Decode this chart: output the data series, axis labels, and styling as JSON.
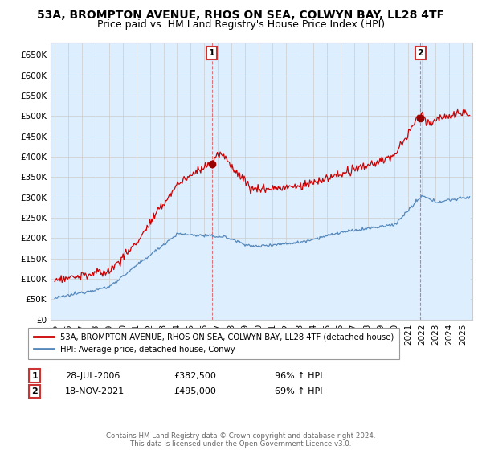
{
  "title": "53A, BROMPTON AVENUE, RHOS ON SEA, COLWYN BAY, LL28 4TF",
  "subtitle": "Price paid vs. HM Land Registry's House Price Index (HPI)",
  "ylim": [
    0,
    680000
  ],
  "yticks": [
    0,
    50000,
    100000,
    150000,
    200000,
    250000,
    300000,
    350000,
    400000,
    450000,
    500000,
    550000,
    600000,
    650000
  ],
  "ytick_labels": [
    "£0",
    "£50K",
    "£100K",
    "£150K",
    "£200K",
    "£250K",
    "£300K",
    "£350K",
    "£400K",
    "£450K",
    "£500K",
    "£550K",
    "£600K",
    "£650K"
  ],
  "xlim_start": 1994.7,
  "xlim_end": 2025.7,
  "red_line_color": "#cc0000",
  "blue_line_color": "#5588bb",
  "blue_fill_color": "#ddeeff",
  "point1_x": 2006.55,
  "point1_y": 382500,
  "point2_x": 2021.88,
  "point2_y": 495000,
  "point1_label": "1",
  "point2_label": "2",
  "legend_red": "53A, BROMPTON AVENUE, RHOS ON SEA, COLWYN BAY, LL28 4TF (detached house)",
  "legend_blue": "HPI: Average price, detached house, Conwy",
  "footer": "Contains HM Land Registry data © Crown copyright and database right 2024.\nThis data is licensed under the Open Government Licence v3.0.",
  "title_fontsize": 10,
  "subtitle_fontsize": 9,
  "tick_fontsize": 7.5,
  "background_color": "#ffffff",
  "grid_color": "#cccccc",
  "vline_color": "#dd4444"
}
